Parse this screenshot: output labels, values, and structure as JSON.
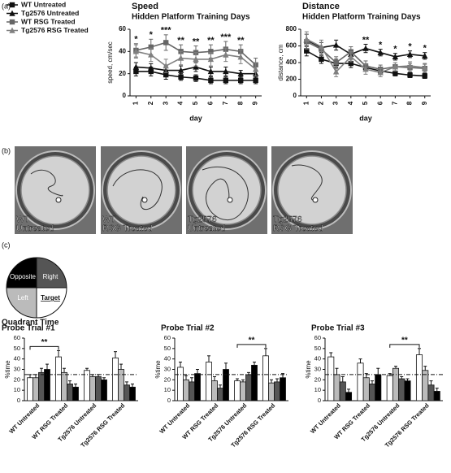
{
  "panel_labels": [
    "(a)",
    "(b)",
    "(c)"
  ],
  "panel_c_title": "Quadrant Time",
  "maze_images": [
    {
      "label": [
        "WT",
        "Untreated"
      ]
    },
    {
      "label": [
        "WT",
        "RSG Treated"
      ]
    },
    {
      "label": [
        "Tg2576",
        "Untreated"
      ]
    },
    {
      "label": [
        "Tg2576",
        "RSG Treated"
      ]
    }
  ],
  "chart_data": [
    {
      "type": "line",
      "title": "Speed",
      "subtitle": "Hidden Platform Training Days",
      "x_label": "day",
      "y_label": "speed, cm/sec",
      "x": [
        1,
        2,
        3,
        4,
        5,
        6,
        7,
        8,
        9
      ],
      "xlim": [
        0.6,
        9.4
      ],
      "xticks": [
        1,
        2,
        3,
        4,
        5,
        6,
        7,
        8,
        9
      ],
      "ylim": [
        0,
        60
      ],
      "yticks": [
        0,
        20,
        40,
        60
      ],
      "series": [
        {
          "name": "WT Untreated",
          "color": "#111111",
          "marker": "square",
          "values": [
            22,
            22,
            19,
            17,
            16,
            14,
            14,
            14,
            14
          ],
          "errors": [
            4,
            4,
            4,
            3,
            3,
            3,
            3,
            3,
            3
          ]
        },
        {
          "name": "Tg2576 Untreated",
          "color": "#111111",
          "marker": "triangle",
          "values": [
            26,
            25,
            23,
            23,
            26,
            22,
            22,
            20,
            20
          ],
          "errors": [
            4,
            4,
            4,
            4,
            4,
            4,
            4,
            3,
            3
          ]
        },
        {
          "name": "WT RSG Treated",
          "color": "#666666",
          "marker": "square",
          "values": [
            41,
            44,
            48,
            40,
            39,
            40,
            42,
            40,
            28
          ],
          "errors": [
            6,
            7,
            7,
            6,
            6,
            6,
            7,
            6,
            6
          ]
        },
        {
          "name": "Tg2576 RSG Treated",
          "color": "#808080",
          "marker": "triangle",
          "values": [
            40,
            37,
            27,
            34,
            33,
            33,
            37,
            35,
            24
          ],
          "errors": [
            6,
            6,
            6,
            6,
            6,
            6,
            6,
            6,
            6
          ]
        }
      ],
      "significance": [
        "*",
        "*",
        "***",
        "**",
        "**",
        "**",
        "***",
        "**",
        null
      ]
    },
    {
      "type": "line",
      "title": "Distance",
      "subtitle": "Hidden Platform Training Days",
      "x_label": "day",
      "y_label": "distance, cm",
      "x": [
        1,
        2,
        3,
        4,
        5,
        6,
        7,
        8,
        9
      ],
      "xlim": [
        0.6,
        9.4
      ],
      "xticks": [
        1,
        2,
        3,
        4,
        5,
        6,
        7,
        8,
        9
      ],
      "ylim": [
        0,
        800
      ],
      "yticks": [
        0,
        200,
        400,
        600,
        800
      ],
      "series": [
        {
          "name": "WT Untreated",
          "color": "#111111",
          "marker": "square",
          "values": [
            540,
            440,
            390,
            390,
            340,
            300,
            270,
            250,
            240
          ],
          "errors": [
            60,
            50,
            50,
            50,
            40,
            40,
            30,
            30,
            30
          ]
        },
        {
          "name": "Tg2576 Untreated",
          "color": "#111111",
          "marker": "triangle",
          "values": [
            670,
            580,
            610,
            500,
            570,
            520,
            470,
            500,
            480
          ],
          "errors": [
            70,
            60,
            60,
            50,
            50,
            40,
            40,
            40,
            40
          ]
        },
        {
          "name": "WT RSG Treated",
          "color": "#666666",
          "marker": "square",
          "values": [
            650,
            560,
            400,
            530,
            360,
            320,
            350,
            340,
            330
          ],
          "errors": [
            90,
            80,
            70,
            60,
            60,
            50,
            50,
            50,
            50
          ]
        },
        {
          "name": "Tg2576 RSG Treated",
          "color": "#808080",
          "marker": "triangle",
          "values": [
            680,
            590,
            290,
            470,
            320,
            280,
            350,
            360,
            340
          ],
          "errors": [
            90,
            80,
            60,
            60,
            60,
            50,
            50,
            50,
            50
          ]
        }
      ],
      "significance": [
        null,
        null,
        null,
        null,
        "**",
        "*",
        "*",
        "*",
        "*"
      ]
    },
    {
      "type": "bar",
      "title": "Probe Trial #1",
      "y_label": "%time",
      "categories": [
        "WT Untreated",
        "WT RSG Treated",
        "Tg2576 Untreated",
        "Tg2576 RSG Treated"
      ],
      "ylim": [
        0,
        60
      ],
      "yticks": [
        0,
        10,
        20,
        30,
        40,
        50,
        60
      ],
      "reference_line": 25,
      "series": [
        {
          "name": "Target",
          "color": "#ffffff",
          "values": [
            22,
            42,
            29,
            41
          ],
          "errors": [
            3,
            6,
            2,
            6
          ]
        },
        {
          "name": "Left",
          "color": "#bbbbbb",
          "values": [
            22,
            27,
            23,
            30
          ],
          "errors": [
            3,
            4,
            2,
            5
          ]
        },
        {
          "name": "Right",
          "color": "#555555",
          "values": [
            27,
            16,
            23,
            15
          ],
          "errors": [
            4,
            3,
            2,
            3
          ]
        },
        {
          "name": "Opposite",
          "color": "#000000",
          "values": [
            30,
            13,
            20,
            13
          ],
          "errors": [
            5,
            3,
            2,
            3
          ]
        }
      ],
      "bracket": {
        "between": [
          0,
          1
        ],
        "label": "**"
      }
    },
    {
      "type": "bar",
      "title": "Probe Trial #2",
      "y_label": "%time",
      "categories": [
        "WT Untreated",
        "WT RSG Treated",
        "Tg2576 Untreated",
        "Tg2576 RSG Treated"
      ],
      "ylim": [
        0,
        60
      ],
      "yticks": [
        0,
        10,
        20,
        30,
        40,
        50,
        60
      ],
      "reference_line": 25,
      "series": [
        {
          "name": "Target",
          "color": "#ffffff",
          "values": [
            32,
            37,
            19,
            43
          ],
          "errors": [
            5,
            6,
            2,
            7
          ]
        },
        {
          "name": "Left",
          "color": "#bbbbbb",
          "values": [
            20,
            19,
            18,
            17
          ],
          "errors": [
            4,
            4,
            2,
            3
          ]
        },
        {
          "name": "Right",
          "color": "#555555",
          "values": [
            18,
            12,
            25,
            18
          ],
          "errors": [
            4,
            3,
            2,
            3
          ]
        },
        {
          "name": "Opposite",
          "color": "#000000",
          "values": [
            26,
            30,
            34,
            22
          ],
          "errors": [
            4,
            6,
            3,
            4
          ]
        }
      ],
      "bracket": {
        "between": [
          2,
          3
        ],
        "label": "**"
      }
    },
    {
      "type": "bar",
      "title": "Probe Trial #3",
      "y_label": "%time",
      "categories": [
        "WT Untreated",
        "WT RSG Treated",
        "Tg2576 Untreated",
        "Tg2576 RSG Treated"
      ],
      "ylim": [
        0,
        60
      ],
      "yticks": [
        0,
        10,
        20,
        30,
        40,
        50,
        60
      ],
      "reference_line": 25,
      "series": [
        {
          "name": "Target",
          "color": "#ffffff",
          "values": [
            42,
            36,
            24,
            44
          ],
          "errors": [
            4,
            4,
            2,
            6
          ]
        },
        {
          "name": "Left",
          "color": "#bbbbbb",
          "values": [
            25,
            22,
            31,
            29
          ],
          "errors": [
            6,
            4,
            2,
            4
          ]
        },
        {
          "name": "Right",
          "color": "#555555",
          "values": [
            18,
            16,
            21,
            15
          ],
          "errors": [
            5,
            3,
            2,
            4
          ]
        },
        {
          "name": "Opposite",
          "color": "#000000",
          "values": [
            8,
            25,
            19,
            9
          ],
          "errors": [
            3,
            6,
            2,
            3
          ]
        }
      ],
      "bracket": {
        "between": [
          2,
          3
        ],
        "label": "**"
      }
    }
  ]
}
